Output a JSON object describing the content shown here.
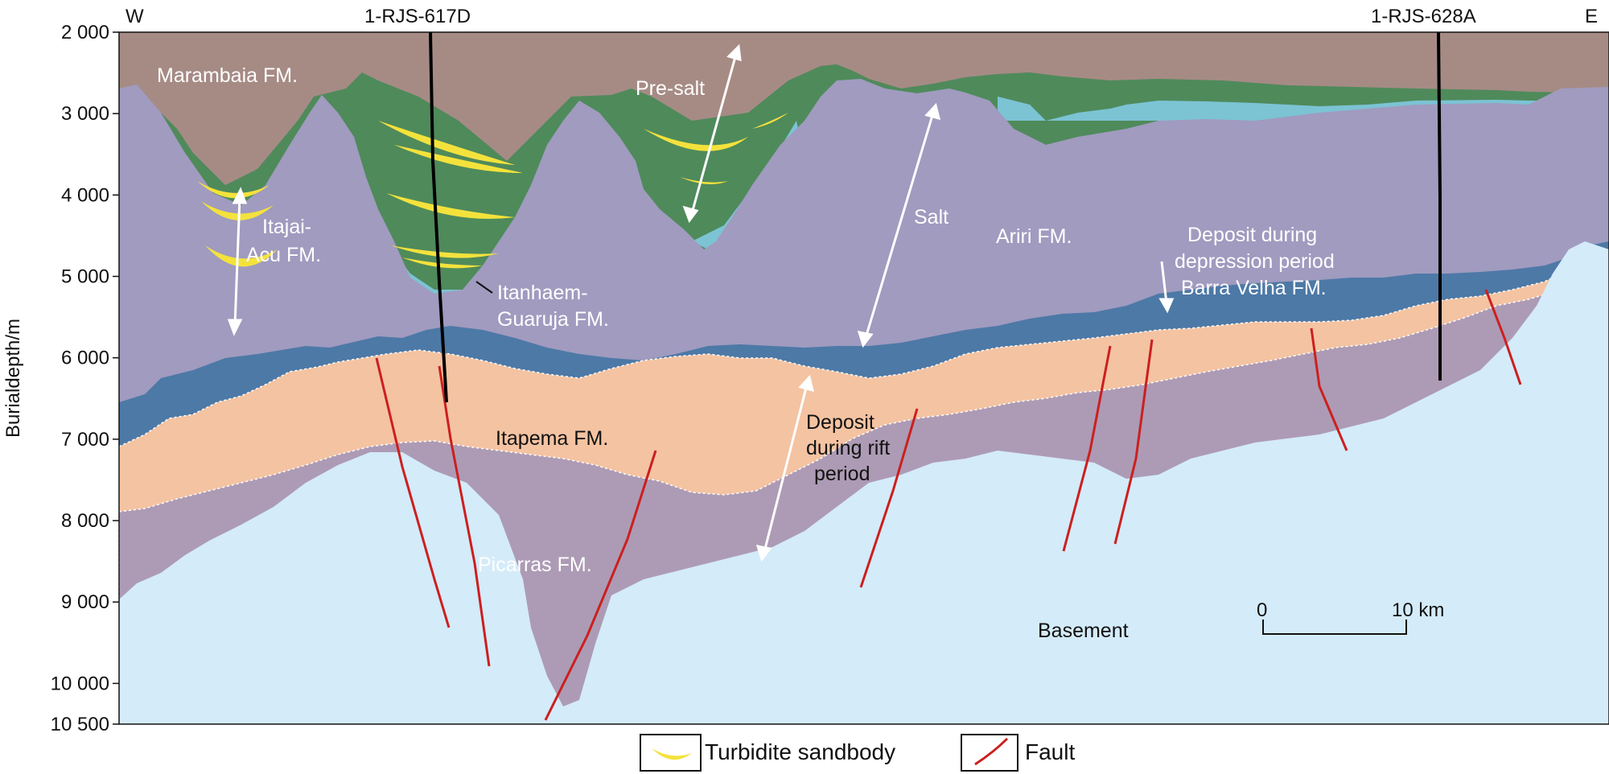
{
  "header": {
    "west": "W",
    "east": "E",
    "well_1": "1-RJS-617D",
    "well_2": "1-RJS-628A"
  },
  "axis": {
    "ylabel": "Burialdepth/m",
    "ticks": [
      "2 000",
      "3 000",
      "4 000",
      "5 000",
      "6 000",
      "7 000",
      "8 000",
      "9 000",
      "10 000",
      "10 500"
    ],
    "tick_values": [
      2000,
      3000,
      4000,
      5000,
      6000,
      7000,
      8000,
      9000,
      10000,
      10500
    ],
    "range_m": [
      2000,
      10500
    ]
  },
  "labels": {
    "marambaia": "Marambaia FM.",
    "itajai_1": "Itajai-",
    "itajai_2": "Acu FM.",
    "itanhaem_1": "Itanhaem-",
    "itanhaem_2": "Guaruja FM.",
    "presalt": "Pre-salt",
    "salt": "Salt",
    "ariri": "Ariri FM.",
    "depression_1": "Deposit during",
    "depression_2": "depression period",
    "depression_3": "Barra Velha FM.",
    "itapema": "Itapema FM.",
    "rift_1": "Deposit",
    "rift_2": "during rift",
    "rift_3": "period",
    "picarras": "Picarras FM.",
    "basement": "Basement"
  },
  "scale": {
    "zero": "0",
    "ten": "10 km"
  },
  "legend": {
    "turbidite": "Turbidite sandbody",
    "fault": "Fault"
  },
  "colors": {
    "marambaia": "#a68b85",
    "green": "#4f8a5b",
    "cyan": "#7cc3d4",
    "salt": "#a09bbf",
    "barra_velha": "#4d79a6",
    "itapema": "#f4c3a2",
    "picarras": "#ad9bb5",
    "basement": "#d4ebf9",
    "turbidite": "#f4e23c",
    "fault": "#cc1f1f",
    "well": "#000000"
  }
}
